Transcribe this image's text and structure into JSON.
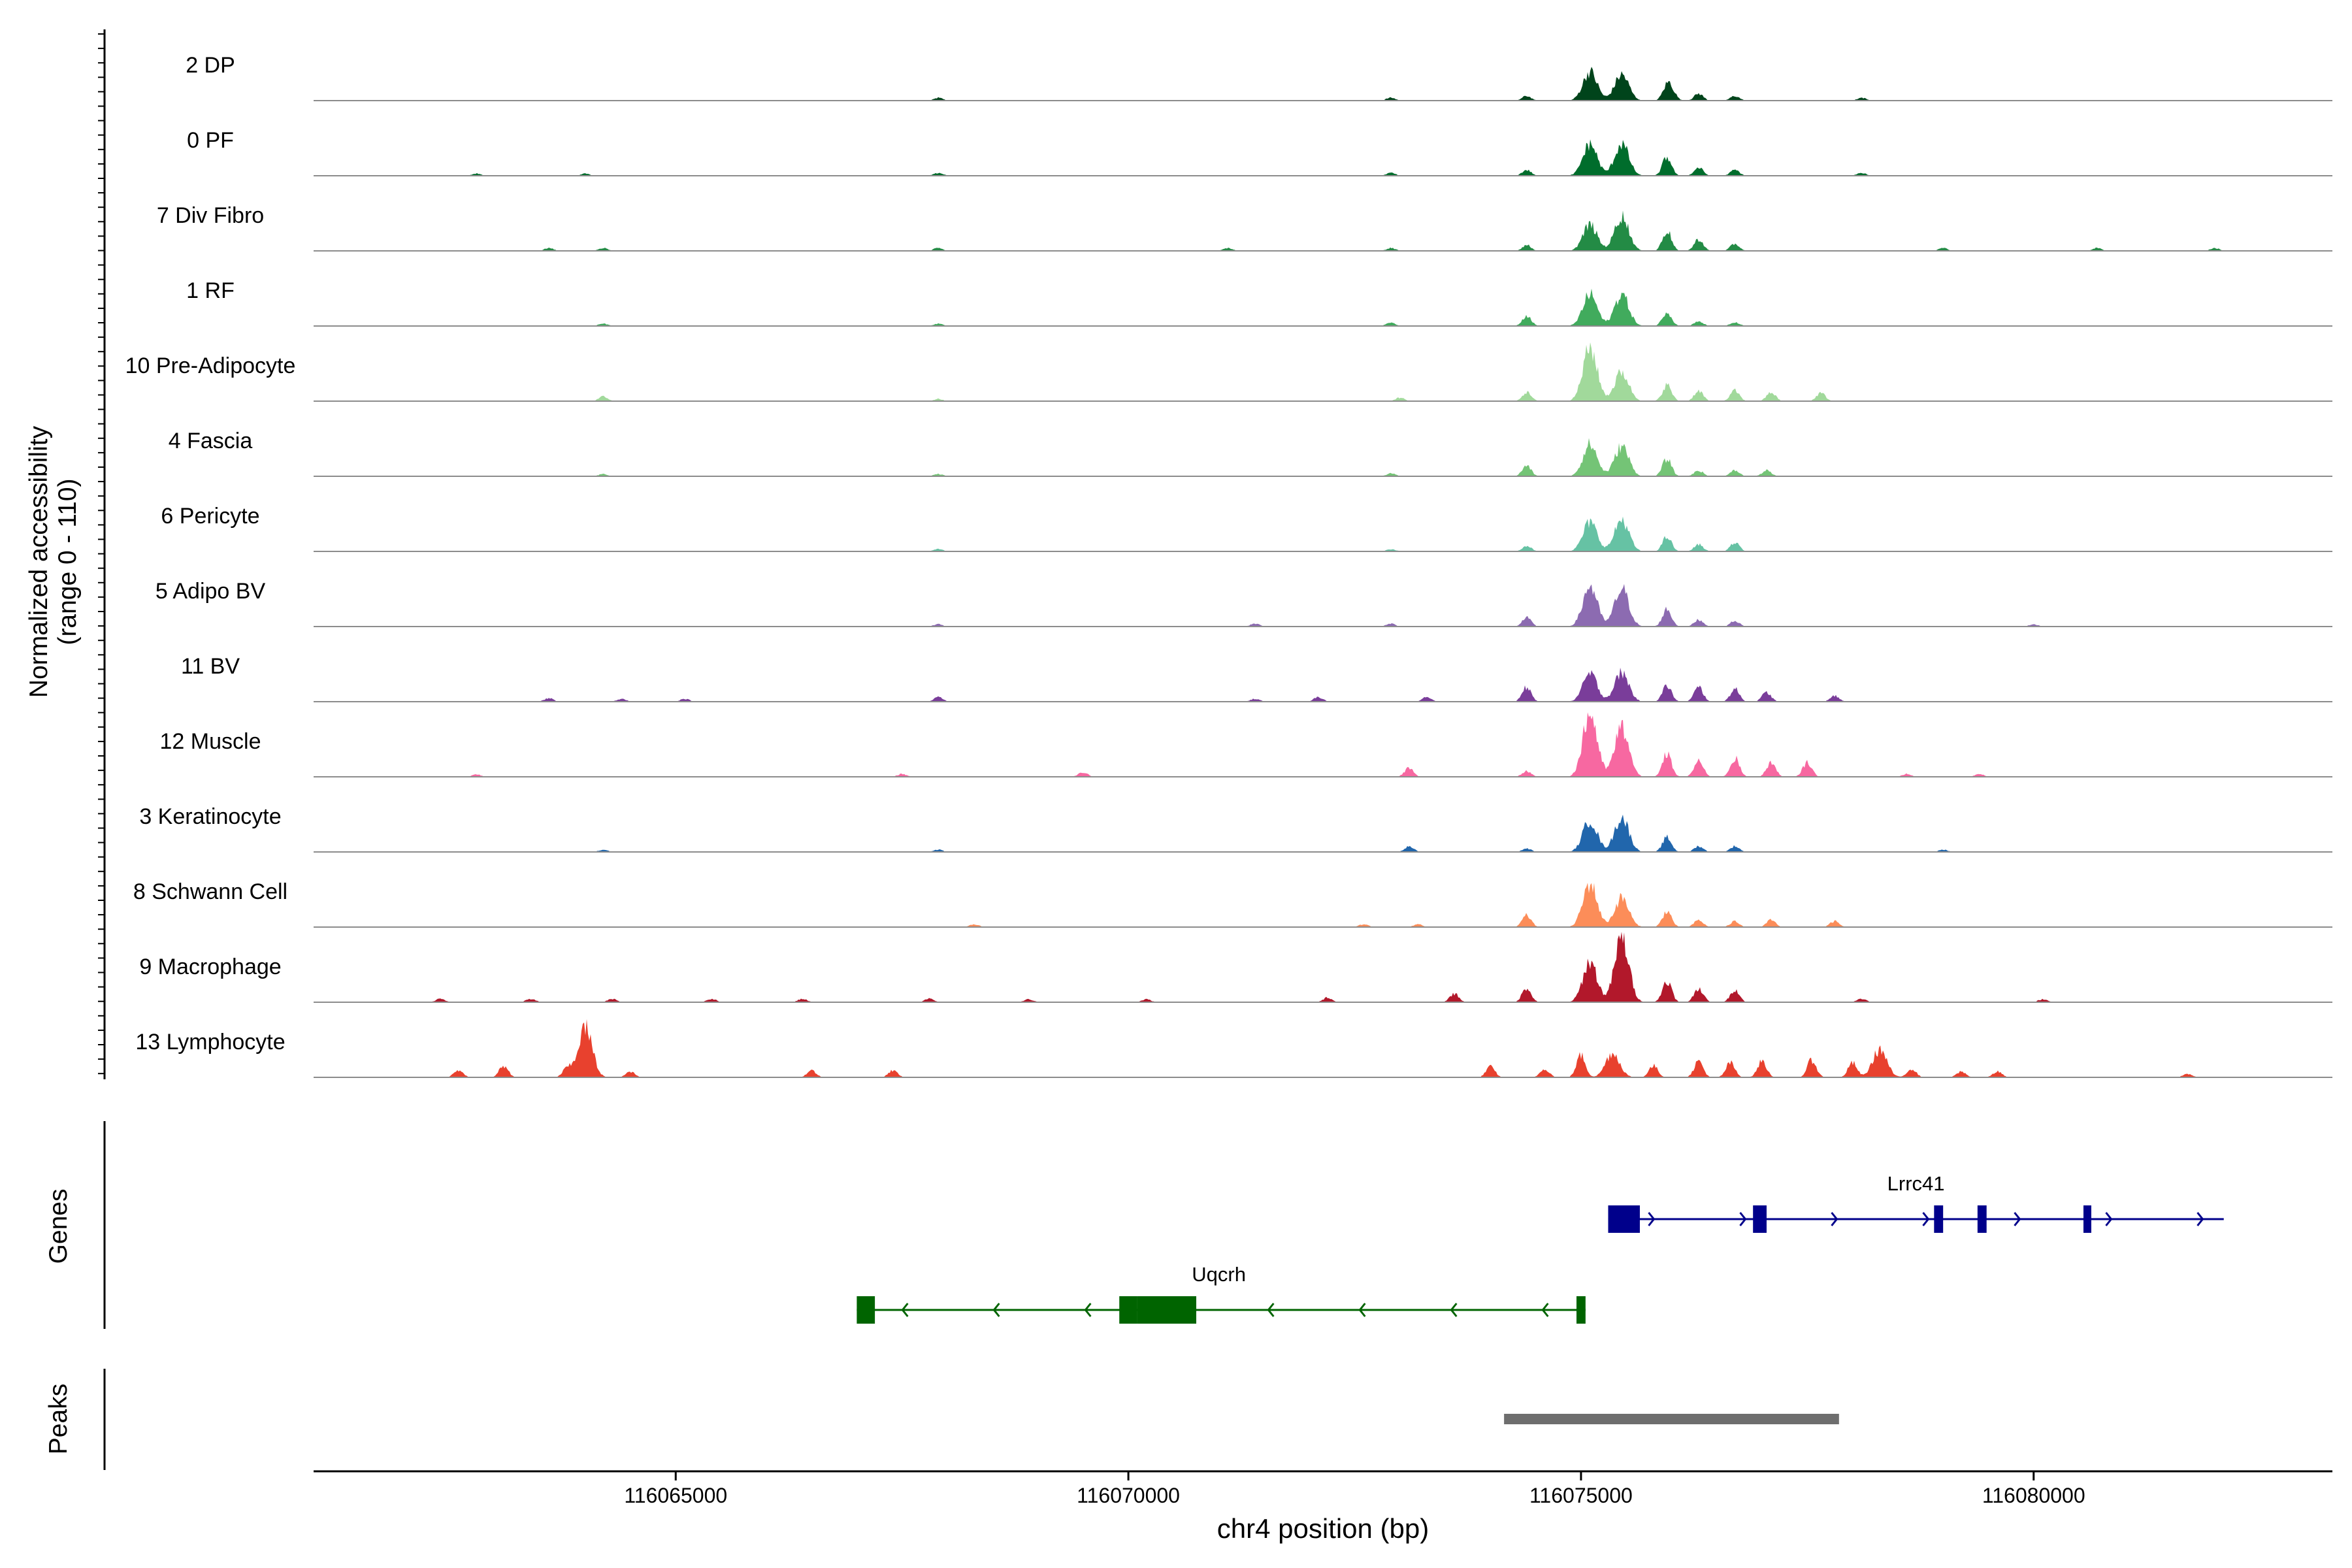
{
  "chart_data": {
    "type": "area",
    "title": "",
    "ylabel_line1": "Normalized accessibility",
    "ylabel_line2": "(range 0 - 110)",
    "xlabel": "chr4 position (bp)",
    "xlim": [
      116061000,
      116083300
    ],
    "ylim": [
      0,
      110
    ],
    "x_ticks": [
      116065000,
      116070000,
      116075000,
      116080000
    ],
    "x_tick_labels": [
      "116065000",
      "116070000",
      "116075000",
      "116080000"
    ],
    "series": [
      {
        "name": "2 DP",
        "color": "#00441b",
        "peaks": [
          [
            116075100,
            50
          ],
          [
            116075450,
            45
          ],
          [
            116075950,
            22
          ],
          [
            116074400,
            8
          ],
          [
            116076300,
            12
          ],
          [
            116076700,
            8
          ],
          [
            116072900,
            5
          ],
          [
            116067900,
            5
          ],
          [
            116078100,
            5
          ],
          [
            116076000,
            14
          ]
        ]
      },
      {
        "name": "0 PF",
        "color": "#006d2c",
        "peaks": [
          [
            116075100,
            55
          ],
          [
            116075450,
            55
          ],
          [
            116075950,
            32
          ],
          [
            116074400,
            10
          ],
          [
            116076300,
            14
          ],
          [
            116076700,
            10
          ],
          [
            116072900,
            5
          ],
          [
            116067900,
            5
          ],
          [
            116078100,
            5
          ],
          [
            116062800,
            4
          ],
          [
            116064000,
            4
          ]
        ]
      },
      {
        "name": "7 Div Fibro",
        "color": "#238b45",
        "peaks": [
          [
            116075100,
            45
          ],
          [
            116075450,
            60
          ],
          [
            116075950,
            35
          ],
          [
            116076300,
            20
          ],
          [
            116074400,
            10
          ],
          [
            116076700,
            12
          ],
          [
            116063600,
            5
          ],
          [
            116064200,
            5
          ],
          [
            116067900,
            5
          ],
          [
            116071100,
            5
          ],
          [
            116072900,
            5
          ],
          [
            116079000,
            5
          ],
          [
            116080700,
            5
          ],
          [
            116082000,
            5
          ]
        ]
      },
      {
        "name": "1 RF",
        "color": "#41ab5d",
        "peaks": [
          [
            116075100,
            55
          ],
          [
            116075450,
            55
          ],
          [
            116075950,
            25
          ],
          [
            116074400,
            18
          ],
          [
            116076300,
            8
          ],
          [
            116076700,
            6
          ],
          [
            116072900,
            6
          ],
          [
            116064200,
            4
          ],
          [
            116067900,
            4
          ]
        ]
      },
      {
        "name": "10 Pre-Adipocyte",
        "color": "#a1d99b",
        "peaks": [
          [
            116075100,
            92
          ],
          [
            116075450,
            50
          ],
          [
            116075950,
            28
          ],
          [
            116074400,
            15
          ],
          [
            116076300,
            18
          ],
          [
            116076700,
            18
          ],
          [
            116077100,
            15
          ],
          [
            116077650,
            14
          ],
          [
            116073000,
            6
          ],
          [
            116064200,
            8
          ],
          [
            116067900,
            4
          ]
        ]
      },
      {
        "name": "4 Fascia",
        "color": "#74c476",
        "peaks": [
          [
            116075100,
            55
          ],
          [
            116075450,
            52
          ],
          [
            116075950,
            30
          ],
          [
            116074400,
            18
          ],
          [
            116076300,
            10
          ],
          [
            116076700,
            10
          ],
          [
            116077050,
            10
          ],
          [
            116072900,
            5
          ],
          [
            116064200,
            4
          ],
          [
            116067900,
            4
          ]
        ]
      },
      {
        "name": "6 Pericyte",
        "color": "#66c2a4",
        "peaks": [
          [
            116075100,
            50
          ],
          [
            116075450,
            55
          ],
          [
            116075950,
            25
          ],
          [
            116076700,
            15
          ],
          [
            116076300,
            12
          ],
          [
            116074400,
            10
          ],
          [
            116072900,
            4
          ],
          [
            116067900,
            4
          ]
        ]
      },
      {
        "name": "5 Adipo BV",
        "color": "#8c6bb1",
        "peaks": [
          [
            116075100,
            70
          ],
          [
            116075450,
            65
          ],
          [
            116075950,
            30
          ],
          [
            116074400,
            15
          ],
          [
            116076300,
            12
          ],
          [
            116076700,
            10
          ],
          [
            116071400,
            5
          ],
          [
            116072900,
            5
          ],
          [
            116067900,
            4
          ],
          [
            116080000,
            4
          ]
        ]
      },
      {
        "name": "11 BV",
        "color": "#7a3d9a",
        "peaks": [
          [
            116075100,
            48
          ],
          [
            116075450,
            50
          ],
          [
            116075950,
            28
          ],
          [
            116074400,
            25
          ],
          [
            116076300,
            25
          ],
          [
            116076700,
            22
          ],
          [
            116077050,
            16
          ],
          [
            116077800,
            10
          ],
          [
            116073300,
            8
          ],
          [
            116072100,
            8
          ],
          [
            116071400,
            5
          ],
          [
            116067900,
            8
          ],
          [
            116063600,
            6
          ],
          [
            116064400,
            5
          ],
          [
            116065100,
            5
          ]
        ]
      },
      {
        "name": "12 Muscle",
        "color": "#f768a1",
        "peaks": [
          [
            116075100,
            110
          ],
          [
            116075450,
            85
          ],
          [
            116075950,
            40
          ],
          [
            116076300,
            28
          ],
          [
            116076700,
            32
          ],
          [
            116077100,
            25
          ],
          [
            116077500,
            25
          ],
          [
            116073100,
            15
          ],
          [
            116074400,
            10
          ],
          [
            116069500,
            8
          ],
          [
            116067500,
            5
          ],
          [
            116062800,
            4
          ],
          [
            116078600,
            5
          ],
          [
            116079400,
            5
          ]
        ]
      },
      {
        "name": "3 Keratinocyte",
        "color": "#2166ac",
        "peaks": [
          [
            116075100,
            55
          ],
          [
            116075450,
            60
          ],
          [
            116075950,
            25
          ],
          [
            116076300,
            10
          ],
          [
            116076700,
            10
          ],
          [
            116073100,
            10
          ],
          [
            116074400,
            6
          ],
          [
            116064200,
            4
          ],
          [
            116067900,
            4
          ],
          [
            116079000,
            4
          ]
        ]
      },
      {
        "name": "8 Schwann Cell",
        "color": "#fc8d59",
        "peaks": [
          [
            116075100,
            75
          ],
          [
            116075450,
            50
          ],
          [
            116075950,
            28
          ],
          [
            116074400,
            20
          ],
          [
            116076300,
            12
          ],
          [
            116076700,
            10
          ],
          [
            116077100,
            12
          ],
          [
            116077800,
            10
          ],
          [
            116072600,
            5
          ],
          [
            116068300,
            5
          ],
          [
            116073200,
            5
          ]
        ]
      },
      {
        "name": "9 Macrophage",
        "color": "#b2182b",
        "peaks": [
          [
            116075100,
            70
          ],
          [
            116075450,
            110
          ],
          [
            116075950,
            38
          ],
          [
            116074400,
            25
          ],
          [
            116076300,
            25
          ],
          [
            116076700,
            22
          ],
          [
            116073600,
            15
          ],
          [
            116072200,
            8
          ],
          [
            116062400,
            6
          ],
          [
            116063400,
            6
          ],
          [
            116064300,
            6
          ],
          [
            116065400,
            6
          ],
          [
            116066400,
            6
          ],
          [
            116067800,
            6
          ],
          [
            116068900,
            5
          ],
          [
            116070200,
            5
          ],
          [
            116078100,
            6
          ],
          [
            116080100,
            5
          ]
        ]
      },
      {
        "name": "13 Lymphocyte",
        "color": "#e8412e",
        "peaks": [
          [
            116064000,
            85
          ],
          [
            116063100,
            20
          ],
          [
            116062600,
            12
          ],
          [
            116063800,
            15
          ],
          [
            116064500,
            10
          ],
          [
            116066500,
            12
          ],
          [
            116067400,
            12
          ],
          [
            116074000,
            18
          ],
          [
            116074600,
            15
          ],
          [
            116075000,
            38
          ],
          [
            116075350,
            42
          ],
          [
            116075800,
            20
          ],
          [
            116076300,
            28
          ],
          [
            116076650,
            25
          ],
          [
            116077000,
            28
          ],
          [
            116077550,
            30
          ],
          [
            116078000,
            25
          ],
          [
            116078300,
            48
          ],
          [
            116078650,
            15
          ],
          [
            116079200,
            10
          ],
          [
            116079600,
            10
          ],
          [
            116081700,
            6
          ]
        ]
      }
    ]
  },
  "axes": {
    "genes_label": "Genes",
    "peaks_label": "Peaks"
  },
  "genes": [
    {
      "name": "Lrrc41",
      "strand": "+",
      "color": "#00008b",
      "start": 116075300,
      "end": 116082100,
      "exons": [
        [
          116075300,
          116075650
        ],
        [
          116076900,
          116077050
        ],
        [
          116078900,
          116079000
        ],
        [
          116079380,
          116079480
        ],
        [
          116080550,
          116080620
        ]
      ]
    },
    {
      "name": "Uqcrh",
      "strand": "-",
      "color": "#006400",
      "start": 116067000,
      "end": 116075050,
      "exons": [
        [
          116067000,
          116067200
        ],
        [
          116069900,
          116070100
        ],
        [
          116070100,
          116070750
        ],
        [
          116074950,
          116075050
        ]
      ]
    }
  ],
  "peaks_track": [
    {
      "start": 116074150,
      "end": 116077850,
      "color": "#6e6e6e"
    }
  ]
}
